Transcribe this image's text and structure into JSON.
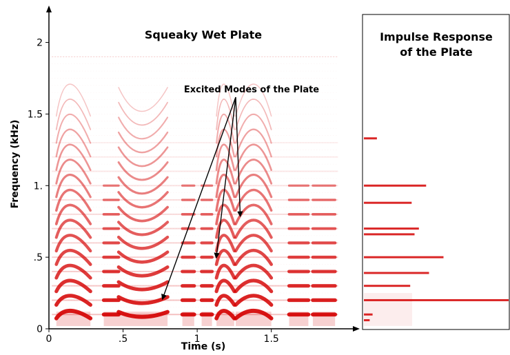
{
  "chart_data": [
    {
      "type": "heatmap",
      "title": "Squeaky Wet Plate",
      "xlabel": "Time (s)",
      "ylabel": "Frequency (kHz)",
      "xlim": [
        0,
        2.05
      ],
      "ylim": [
        0,
        2.2
      ],
      "x_ticks": [
        {
          "value": 0,
          "label": "0"
        },
        {
          "value": 0.5,
          "label": ".5"
        },
        {
          "value": 1,
          "label": "1"
        },
        {
          "value": 1.5,
          "label": "1.5"
        }
      ],
      "y_ticks": [
        {
          "value": 0,
          "label": "0"
        },
        {
          "value": 0.5,
          "label": ".5"
        },
        {
          "value": 1,
          "label": "1."
        },
        {
          "value": 1.5,
          "label": "1.5"
        },
        {
          "value": 2,
          "label": "2"
        }
      ],
      "colormap": [
        "#ffffff",
        "#d40000"
      ],
      "annotation": {
        "text": "Excited Modes of the Plate",
        "anchor": {
          "x": 1.24,
          "y": 1.6
        },
        "targets": [
          {
            "x": 0.77,
            "y": 0.22
          },
          {
            "x": 1.13,
            "y": 0.51
          },
          {
            "x": 1.29,
            "y": 0.8
          }
        ]
      },
      "horizontal_modes_khz": [
        0.1,
        0.2,
        0.3,
        0.4,
        0.5,
        0.6,
        0.7,
        0.8,
        0.9,
        1.0,
        1.1,
        1.2,
        1.3
      ],
      "bursts": [
        {
          "start": 0.05,
          "end": 0.28,
          "shape": "arch",
          "peak": 0.12
        },
        {
          "start": 0.37,
          "end": 0.47,
          "shape": "flat"
        },
        {
          "start": 0.47,
          "end": 0.8,
          "shape": "dip",
          "peak": 0.62
        },
        {
          "start": 0.9,
          "end": 0.98,
          "shape": "flat"
        },
        {
          "start": 1.03,
          "end": 1.1,
          "shape": "flat"
        },
        {
          "start": 1.13,
          "end": 1.25,
          "shape": "arch",
          "peak": 1.17
        },
        {
          "start": 1.26,
          "end": 1.5,
          "shape": "arch",
          "peak": 1.38
        },
        {
          "start": 1.62,
          "end": 1.75,
          "shape": "flat"
        },
        {
          "start": 1.78,
          "end": 1.93,
          "shape": "flat"
        }
      ]
    },
    {
      "type": "bar",
      "orientation": "horizontal",
      "title": "Impulse Response of the Plate",
      "title_lines": [
        "Impulse Response",
        "of the Plate"
      ],
      "ylim": [
        0,
        2.2
      ],
      "xlim": [
        0,
        1
      ],
      "values": [
        {
          "y": 0.06,
          "value": 0.04
        },
        {
          "y": 0.1,
          "value": 0.06
        },
        {
          "y": 0.2,
          "value": 1.0
        },
        {
          "y": 0.3,
          "value": 0.32
        },
        {
          "y": 0.39,
          "value": 0.45
        },
        {
          "y": 0.5,
          "value": 0.55
        },
        {
          "y": 0.66,
          "value": 0.35
        },
        {
          "y": 0.7,
          "value": 0.38
        },
        {
          "y": 0.88,
          "value": 0.33
        },
        {
          "y": 1.0,
          "value": 0.43
        },
        {
          "y": 1.33,
          "value": 0.09
        }
      ]
    }
  ]
}
